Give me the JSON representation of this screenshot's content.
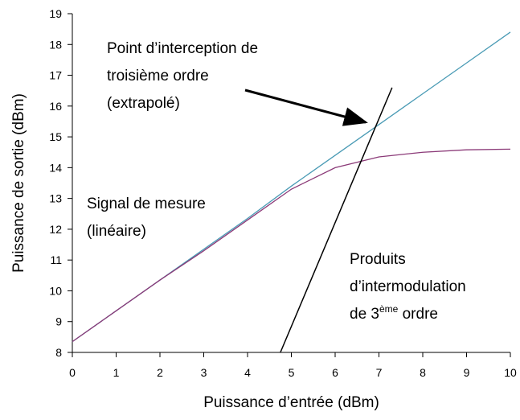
{
  "chart_data": {
    "type": "line",
    "x": [
      0,
      1,
      2,
      3,
      4,
      5,
      6,
      7,
      8,
      9,
      10
    ],
    "series": [
      {
        "color": "#4a9bb5",
        "values": [
          8.35,
          9.35,
          10.35,
          11.35,
          12.35,
          13.4,
          14.4,
          15.4,
          16.4,
          17.4,
          18.4
        ]
      },
      {
        "color": "#8b3a78",
        "values": [
          8.35,
          9.35,
          10.35,
          11.3,
          12.3,
          13.3,
          14.0,
          14.35,
          14.5,
          14.58,
          14.6
        ]
      },
      {
        "color": "#000000",
        "x": [
          4.75,
          7.3
        ],
        "values": [
          8,
          16.6
        ]
      }
    ],
    "xlabel": "Puissance d’entrée (dBm)",
    "ylabel": "Puissance de sortie (dBm)",
    "xlim": [
      0,
      10
    ],
    "ylim": [
      8,
      19
    ],
    "xticks": [
      0,
      1,
      2,
      3,
      4,
      5,
      6,
      7,
      8,
      9,
      10
    ],
    "yticks": [
      8,
      9,
      10,
      11,
      12,
      13,
      14,
      15,
      16,
      17,
      18,
      19
    ],
    "annotations": [
      {
        "lines": [
          "Point d’interception de",
          "troisième ordre",
          "(extrapolé)"
        ]
      },
      {
        "lines": [
          "Signal de mesure",
          "(linéaire)"
        ]
      },
      {
        "lines": [
          "Produits",
          "d’intermodulation"
        ],
        "last": [
          "de 3",
          "ème",
          " ordre"
        ]
      }
    ]
  }
}
